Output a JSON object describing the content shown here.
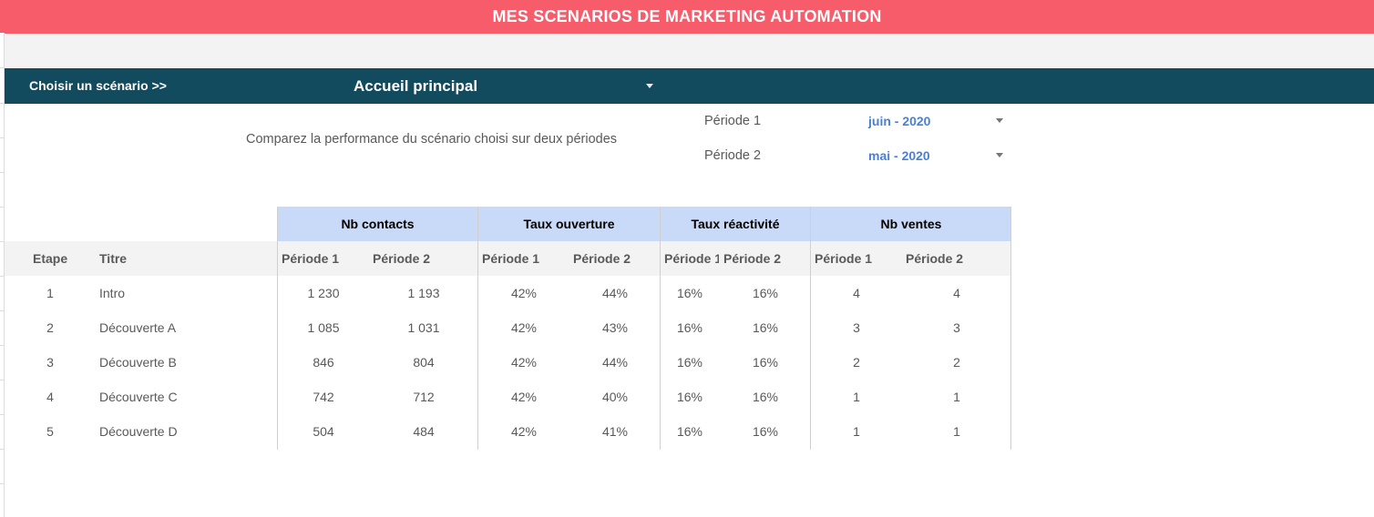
{
  "title": "MES SCENARIOS DE MARKETING AUTOMATION",
  "scenario": {
    "label": "Choisir un scénario >>",
    "selected": "Accueil principal"
  },
  "compare_text": "Comparez la performance du scénario choisi sur deux périodes",
  "periods": [
    {
      "label": "Période 1",
      "value": "juin - 2020"
    },
    {
      "label": "Période 2",
      "value": "mai - 2020"
    }
  ],
  "table": {
    "groups": [
      "Nb  contacts",
      "Taux ouverture",
      "Taux réactivité",
      "Nb ventes"
    ],
    "headers": {
      "etape": "Etape",
      "titre": "Titre",
      "p1": "Période 1",
      "p2": "Période 2"
    },
    "rows": [
      {
        "etape": "1",
        "titre": "Intro",
        "c1": "1 230",
        "c2": "1 193",
        "o1": "42%",
        "o2": "44%",
        "r1": "16%",
        "r2": "16%",
        "v1": "4",
        "v2": "4"
      },
      {
        "etape": "2",
        "titre": "Découverte A",
        "c1": "1 085",
        "c2": "1 031",
        "o1": "42%",
        "o2": "43%",
        "r1": "16%",
        "r2": "16%",
        "v1": "3",
        "v2": "3"
      },
      {
        "etape": "3",
        "titre": "Découverte B",
        "c1": "846",
        "c2": "804",
        "o1": "42%",
        "o2": "44%",
        "r1": "16%",
        "r2": "16%",
        "v1": "2",
        "v2": "2"
      },
      {
        "etape": "4",
        "titre": "Découverte C",
        "c1": "742",
        "c2": "712",
        "o1": "42%",
        "o2": "40%",
        "r1": "16%",
        "r2": "16%",
        "v1": "1",
        "v2": "1"
      },
      {
        "etape": "5",
        "titre": "Découverte D",
        "c1": "504",
        "c2": "484",
        "o1": "42%",
        "o2": "41%",
        "r1": "16%",
        "r2": "16%",
        "v1": "1",
        "v2": "1"
      }
    ]
  },
  "colors": {
    "title_bar": "#f65c6a",
    "scenario_bar": "#124b5e",
    "group_header": "#c9daf8",
    "period_value": "#4a7fd4"
  }
}
